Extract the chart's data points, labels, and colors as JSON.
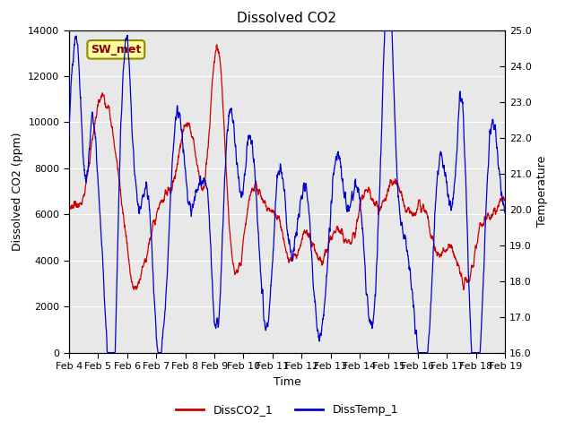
{
  "title": "Dissolved CO2",
  "xlabel": "Time",
  "ylabel_left": "Dissolved CO2 (ppm)",
  "ylabel_right": "Temperature",
  "ylim_left": [
    0,
    14000
  ],
  "ylim_right": [
    16.0,
    25.0
  ],
  "yticks_left": [
    0,
    2000,
    4000,
    6000,
    8000,
    10000,
    12000,
    14000
  ],
  "yticks_right": [
    16.0,
    17.0,
    18.0,
    19.0,
    20.0,
    21.0,
    22.0,
    23.0,
    24.0,
    25.0
  ],
  "xtick_labels": [
    "Feb 4",
    "Feb 5",
    "Feb 6",
    "Feb 7",
    "Feb 8",
    "Feb 9",
    "Feb 10",
    "Feb 11",
    "Feb 12",
    "Feb 13",
    "Feb 14",
    "Feb 15",
    "Feb 16",
    "Feb 17",
    "Feb 18",
    "Feb 19"
  ],
  "color_co2": "#cc0000",
  "color_temp": "#0000cc",
  "legend_co2": "DissCO2_1",
  "legend_temp": "DissTemp_1",
  "annotation_text": "SW_met",
  "plot_bg_color": "#e8e8e8",
  "title_fontsize": 11,
  "tick_fontsize": 8,
  "label_fontsize": 9
}
